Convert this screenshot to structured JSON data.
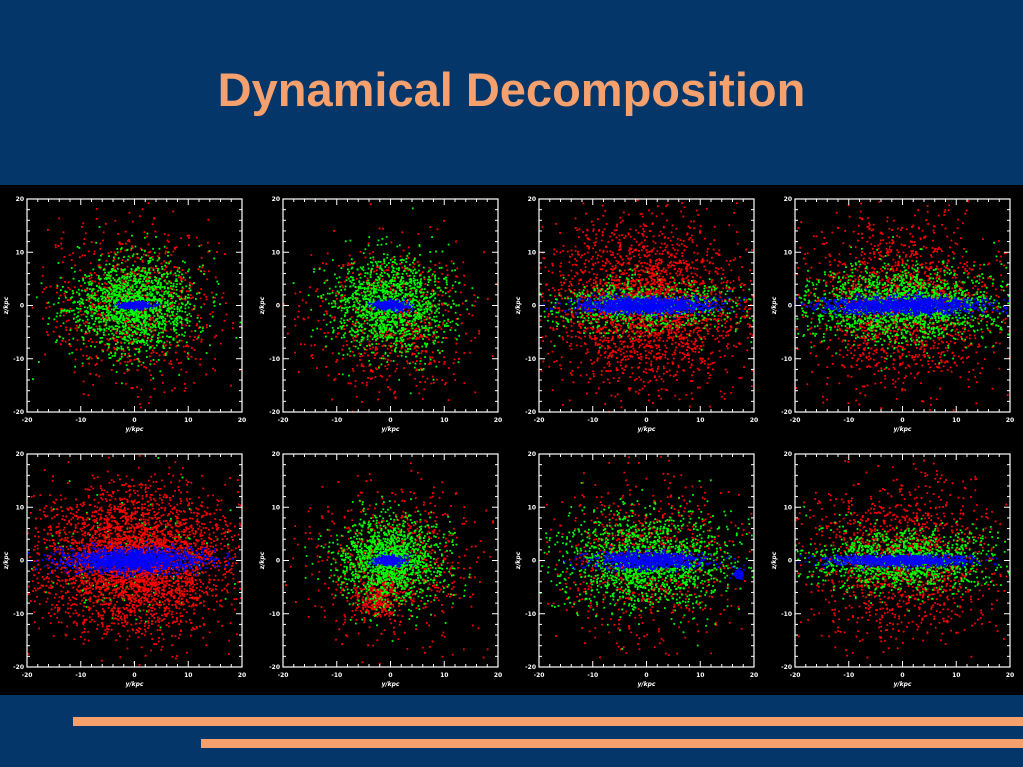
{
  "slide": {
    "title": "Dynamical Decomposition",
    "background_color": "#04366a",
    "title_color": "#f6a06e",
    "accent_color": "#f6a06e"
  },
  "chart_data": [
    {
      "type": "scatter",
      "xlabel": "y/kpc",
      "ylabel": "z/kpc",
      "xlim": [
        -20,
        20
      ],
      "ylim": [
        -20,
        20
      ],
      "x_ticks": [
        "-20",
        "-10",
        "0",
        "10",
        "20"
      ],
      "y_ticks": [
        "-20",
        "-10",
        "0",
        "10",
        "20"
      ],
      "series": [
        {
          "color": "#ff0000",
          "distribution": {
            "n": 900,
            "center": [
              0,
              0
            ],
            "sx": 8,
            "sy": 7.5
          }
        },
        {
          "color": "#00ff00",
          "distribution": {
            "n": 1500,
            "center": [
              0,
              0
            ],
            "sx": 6,
            "sy": 4.5
          }
        },
        {
          "color": "#0000ff",
          "distribution": {
            "n": 320,
            "center": [
              0,
              0
            ],
            "sx": 1.6,
            "sy": 0.35
          }
        }
      ]
    },
    {
      "type": "scatter",
      "xlabel": "y/kpc",
      "ylabel": "z/kpc",
      "xlim": [
        -20,
        20
      ],
      "ylim": [
        -20,
        20
      ],
      "x_ticks": [
        "-20",
        "-10",
        "0",
        "10",
        "20"
      ],
      "y_ticks": [
        "-20",
        "-10",
        "0",
        "10",
        "20"
      ],
      "series": [
        {
          "color": "#ff0000",
          "distribution": {
            "n": 700,
            "center": [
              0,
              -3
            ],
            "sx": 8,
            "sy": 7
          }
        },
        {
          "color": "#00ff00",
          "distribution": {
            "n": 1400,
            "center": [
              0,
              0
            ],
            "sx": 5.5,
            "sy": 4.5
          }
        },
        {
          "color": "#0000ff",
          "distribution": {
            "n": 320,
            "center": [
              0,
              0
            ],
            "sx": 1.6,
            "sy": 0.5
          }
        }
      ]
    },
    {
      "type": "scatter",
      "xlabel": "y/kpc",
      "ylabel": "z/kpc",
      "xlim": [
        -20,
        20
      ],
      "ylim": [
        -20,
        20
      ],
      "x_ticks": [
        "-20",
        "-10",
        "0",
        "10",
        "20"
      ],
      "y_ticks": [
        "-20",
        "-10",
        "0",
        "10",
        "20"
      ],
      "series": [
        {
          "color": "#ff0000",
          "distribution": {
            "n": 2600,
            "center": [
              0,
              0
            ],
            "sx": 9,
            "sy": 7.5
          }
        },
        {
          "color": "#00ff00",
          "distribution": {
            "n": 800,
            "center": [
              0,
              0
            ],
            "sx": 9,
            "sy": 2.5
          }
        },
        {
          "color": "#0000ff",
          "distribution": {
            "n": 1300,
            "center": [
              0,
              0
            ],
            "sx": 6.5,
            "sy": 0.8
          }
        }
      ]
    },
    {
      "type": "scatter",
      "xlabel": "y/kpc",
      "ylabel": "z/kpc",
      "xlim": [
        -20,
        20
      ],
      "ylim": [
        -20,
        20
      ],
      "x_ticks": [
        "-20",
        "-10",
        "0",
        "10",
        "20"
      ],
      "y_ticks": [
        "-20",
        "-10",
        "0",
        "10",
        "20"
      ],
      "series": [
        {
          "color": "#ff0000",
          "distribution": {
            "n": 1600,
            "center": [
              0,
              0
            ],
            "sx": 9,
            "sy": 8
          }
        },
        {
          "color": "#00ff00",
          "distribution": {
            "n": 1700,
            "center": [
              0,
              0
            ],
            "sx": 9,
            "sy": 3.5
          }
        },
        {
          "color": "#0000ff",
          "distribution": {
            "n": 1400,
            "center": [
              0,
              0
            ],
            "sx": 7.5,
            "sy": 0.8
          }
        }
      ]
    },
    {
      "type": "scatter",
      "xlabel": "y/kpc",
      "ylabel": "z/kpc",
      "xlim": [
        -20,
        20
      ],
      "ylim": [
        -20,
        20
      ],
      "x_ticks": [
        "-20",
        "-10",
        "0",
        "10",
        "20"
      ],
      "y_ticks": [
        "-20",
        "-10",
        "0",
        "10",
        "20"
      ],
      "series": [
        {
          "color": "#00ff00",
          "distribution": {
            "n": 200,
            "center": [
              0,
              0
            ],
            "sx": 9,
            "sy": 6
          }
        },
        {
          "color": "#ff0000",
          "distribution": {
            "n": 3600,
            "center": [
              0,
              0
            ],
            "sx": 9,
            "sy": 6.5
          }
        },
        {
          "color": "#0000ff",
          "distribution": {
            "n": 1600,
            "center": [
              0,
              0
            ],
            "sx": 6.5,
            "sy": 1.1
          }
        }
      ]
    },
    {
      "type": "scatter",
      "xlabel": "y/kpc",
      "ylabel": "z/kpc",
      "xlim": [
        -20,
        20
      ],
      "ylim": [
        -20,
        20
      ],
      "x_ticks": [
        "-20",
        "-10",
        "0",
        "10",
        "20"
      ],
      "y_ticks": [
        "-20",
        "-10",
        "0",
        "10",
        "20"
      ],
      "series": [
        {
          "color": "#ff0000",
          "distribution": {
            "n": 700,
            "center": [
              0,
              0
            ],
            "sx": 8,
            "sy": 7.5
          }
        },
        {
          "color": "#ff0000",
          "distribution": {
            "n": 300,
            "center": [
              -2,
              -7
            ],
            "sx": 2,
            "sy": 2
          }
        },
        {
          "color": "#00ff00",
          "distribution": {
            "n": 1400,
            "center": [
              0,
              0
            ],
            "sx": 5,
            "sy": 4
          }
        },
        {
          "color": "#0000ff",
          "distribution": {
            "n": 300,
            "center": [
              0,
              0
            ],
            "sx": 1.4,
            "sy": 0.5
          }
        }
      ]
    },
    {
      "type": "scatter",
      "xlabel": "y/kpc",
      "ylabel": "z/kpc",
      "xlim": [
        -20,
        20
      ],
      "ylim": [
        -20,
        20
      ],
      "x_ticks": [
        "-20",
        "-10",
        "0",
        "10",
        "20"
      ],
      "y_ticks": [
        "-20",
        "-10",
        "0",
        "10",
        "20"
      ],
      "series": [
        {
          "color": "#ff0000",
          "distribution": {
            "n": 800,
            "center": [
              0,
              0
            ],
            "sx": 8,
            "sy": 7.5
          }
        },
        {
          "color": "#00ff00",
          "distribution": {
            "n": 1500,
            "center": [
              0,
              0
            ],
            "sx": 8,
            "sy": 4.5
          }
        },
        {
          "color": "#0000ff",
          "distribution": {
            "n": 900,
            "center": [
              0,
              0
            ],
            "sx": 5,
            "sy": 0.8
          }
        },
        {
          "color": "#0000ff",
          "distribution": {
            "n": 60,
            "center": [
              17,
              -2.5
            ],
            "sx": 0.6,
            "sy": 0.6
          }
        }
      ]
    },
    {
      "type": "scatter",
      "xlabel": "y/kpc",
      "ylabel": "z/kpc",
      "xlim": [
        -20,
        20
      ],
      "ylim": [
        -20,
        20
      ],
      "x_ticks": [
        "-20",
        "-10",
        "0",
        "10",
        "20"
      ],
      "y_ticks": [
        "-20",
        "-10",
        "0",
        "10",
        "20"
      ],
      "series": [
        {
          "color": "#ff0000",
          "distribution": {
            "n": 1400,
            "center": [
              0,
              0
            ],
            "sx": 9,
            "sy": 7.5
          }
        },
        {
          "color": "#00ff00",
          "distribution": {
            "n": 1200,
            "center": [
              0,
              0
            ],
            "sx": 9,
            "sy": 3
          }
        },
        {
          "color": "#0000ff",
          "distribution": {
            "n": 1000,
            "center": [
              0,
              0
            ],
            "sx": 6.5,
            "sy": 0.55
          }
        }
      ]
    }
  ]
}
